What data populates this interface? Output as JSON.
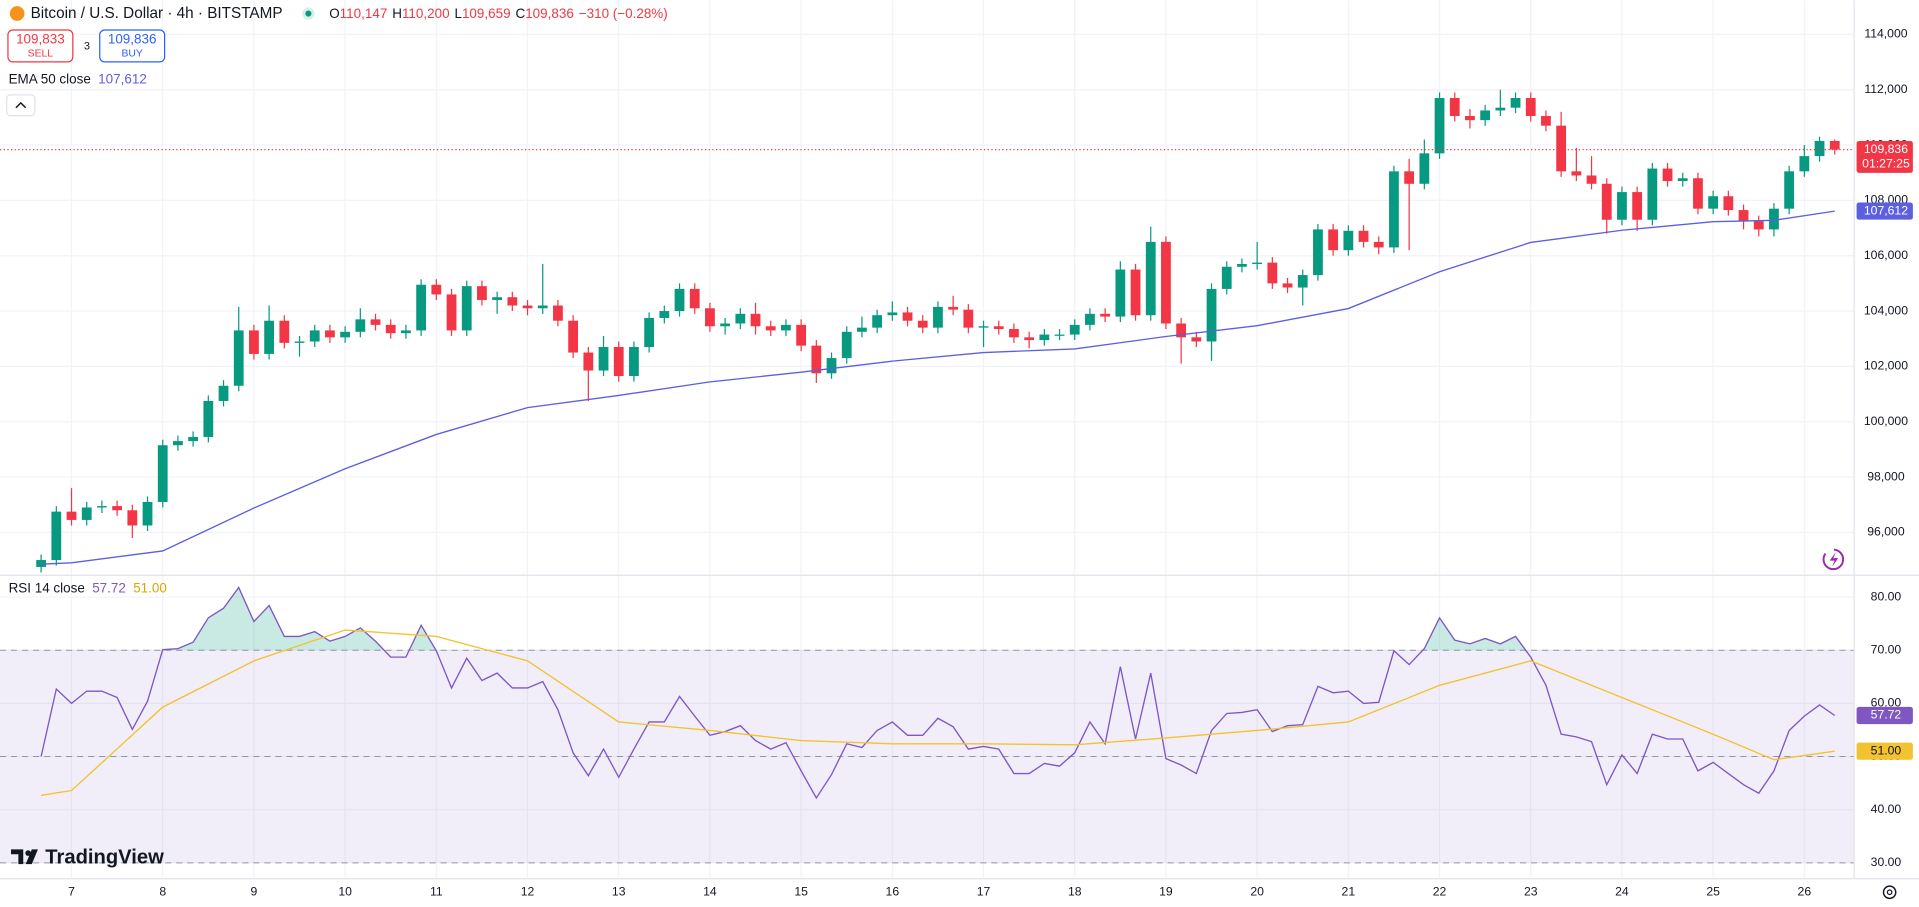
{
  "header": {
    "symbol": "Bitcoin / U.S. Dollar · 4h · BITSTAMP",
    "ohlc": [
      {
        "key": "O",
        "value": "110,147"
      },
      {
        "key": "H",
        "value": "110,200"
      },
      {
        "key": "L",
        "value": "109,659"
      },
      {
        "key": "C",
        "value": "109,836"
      }
    ],
    "change": "−310 (−0.28%)",
    "sell": {
      "price": "109,833",
      "label": "SELL"
    },
    "spread": "3",
    "buy": {
      "price": "109,836",
      "label": "BUY"
    },
    "brand": "TradingView"
  },
  "chart_data": [
    {
      "type": "candlestick",
      "up_color": "#089981",
      "down_color": "#f23645",
      "grid": true,
      "categories": [
        null,
        null,
        "7",
        null,
        null,
        null,
        null,
        null,
        "8",
        null,
        null,
        null,
        null,
        null,
        "9",
        null,
        null,
        null,
        null,
        null,
        "10",
        null,
        null,
        null,
        null,
        null,
        "11",
        null,
        null,
        null,
        null,
        null,
        "12",
        null,
        null,
        null,
        null,
        null,
        "13",
        null,
        null,
        null,
        null,
        null,
        "14",
        null,
        null,
        null,
        null,
        null,
        "15",
        null,
        null,
        null,
        null,
        null,
        "16",
        null,
        null,
        null,
        null,
        null,
        "17",
        null,
        null,
        null,
        null,
        null,
        "18",
        null,
        null,
        null,
        null,
        null,
        "19",
        null,
        null,
        null,
        null,
        null,
        "20",
        null,
        null,
        null,
        null,
        null,
        "21",
        null,
        null,
        null,
        null,
        null,
        "22",
        null,
        null,
        null,
        null,
        null,
        "23",
        null,
        null,
        null,
        null,
        null,
        "24",
        null,
        null,
        null,
        null,
        null,
        "25",
        null,
        null,
        null,
        null,
        null,
        "26",
        null,
        null
      ],
      "open": [
        94750,
        95000,
        96750,
        96450,
        96900,
        96950,
        96800,
        96250,
        97100,
        99150,
        99300,
        99450,
        100750,
        101300,
        103300,
        102450,
        103650,
        102850,
        102900,
        103300,
        103050,
        103250,
        103700,
        103500,
        103200,
        103300,
        104950,
        104600,
        103300,
        104900,
        104400,
        104500,
        104200,
        104100,
        104200,
        103650,
        102500,
        101850,
        102700,
        101650,
        102700,
        103750,
        104000,
        104800,
        104100,
        103450,
        103550,
        103900,
        103450,
        103300,
        103500,
        102750,
        101750,
        102300,
        103250,
        103400,
        103850,
        103950,
        103650,
        103400,
        104150,
        104050,
        103400,
        103450,
        103350,
        103050,
        102950,
        103150,
        103150,
        103500,
        103900,
        103800,
        105500,
        103850,
        106500,
        103550,
        103050,
        102900,
        104800,
        105600,
        105700,
        105750,
        105000,
        104850,
        105300,
        106950,
        106200,
        106900,
        106500,
        106300,
        109050,
        108600,
        109700,
        111700,
        111050,
        110900,
        111250,
        111350,
        111700,
        111050,
        110700,
        109050,
        108900,
        108600,
        107300,
        108300,
        107300,
        109150,
        108700,
        108800,
        107700,
        108150,
        107650,
        107250,
        106950,
        107700,
        109050,
        109600,
        110147
      ],
      "high": [
        95200,
        96950,
        97600,
        97100,
        97150,
        97150,
        97000,
        97300,
        99350,
        99500,
        99650,
        100950,
        101500,
        104150,
        103500,
        104200,
        103850,
        103100,
        103500,
        103500,
        103450,
        104100,
        103900,
        103700,
        103500,
        105150,
        105150,
        104800,
        105100,
        105100,
        104700,
        104700,
        104400,
        105700,
        104400,
        103850,
        102700,
        103100,
        102900,
        102900,
        103950,
        104200,
        105000,
        105000,
        104300,
        103750,
        104100,
        104300,
        103650,
        103700,
        103700,
        102950,
        102500,
        103450,
        103800,
        104050,
        104350,
        104150,
        103850,
        104350,
        104550,
        104250,
        103650,
        103650,
        103550,
        103250,
        103350,
        103350,
        103700,
        104100,
        104100,
        105800,
        105700,
        107050,
        106700,
        103750,
        103250,
        105000,
        105800,
        105900,
        106500,
        105950,
        105200,
        105500,
        107150,
        107150,
        107100,
        107100,
        106700,
        109250,
        109500,
        110200,
        111900,
        111900,
        111300,
        111450,
        112000,
        111900,
        111900,
        111250,
        111200,
        109900,
        109600,
        108800,
        108500,
        108500,
        109350,
        109350,
        109000,
        109000,
        108350,
        108350,
        107850,
        107450,
        107900,
        109250,
        110000,
        110300,
        110200
      ],
      "low": [
        94550,
        94800,
        96250,
        96250,
        96700,
        96600,
        95800,
        96050,
        96900,
        98950,
        99100,
        99250,
        100550,
        101100,
        102250,
        102250,
        102650,
        102350,
        102700,
        102850,
        102850,
        103050,
        103300,
        103000,
        103000,
        103100,
        104400,
        103100,
        103100,
        104200,
        103900,
        104000,
        103850,
        103900,
        103450,
        102300,
        100750,
        101650,
        101450,
        101450,
        102500,
        103550,
        103800,
        103900,
        103250,
        103150,
        103350,
        103150,
        103100,
        103100,
        102550,
        101400,
        101550,
        102100,
        103050,
        103200,
        103650,
        103450,
        103200,
        103200,
        103850,
        103200,
        102700,
        103150,
        102850,
        102650,
        102750,
        102950,
        102950,
        103300,
        103600,
        103600,
        103650,
        103650,
        103350,
        102100,
        102700,
        102200,
        104600,
        105400,
        105500,
        104800,
        104650,
        104200,
        105100,
        106000,
        106000,
        106300,
        106050,
        106100,
        106200,
        108400,
        109500,
        110850,
        110600,
        110700,
        111050,
        111150,
        110850,
        110500,
        108850,
        108700,
        108400,
        106800,
        107100,
        106900,
        107100,
        108500,
        108500,
        107500,
        107500,
        107450,
        106950,
        106700,
        106700,
        107500,
        108850,
        109400,
        109659
      ],
      "close": [
        95000,
        96750,
        96450,
        96900,
        96950,
        96800,
        96250,
        97100,
        99150,
        99300,
        99450,
        100750,
        101300,
        103300,
        102450,
        103650,
        102850,
        102900,
        103300,
        103050,
        103250,
        103700,
        103500,
        103200,
        103300,
        104950,
        104600,
        103300,
        104900,
        104400,
        104500,
        104200,
        104100,
        104200,
        103650,
        102500,
        101850,
        102700,
        101650,
        102700,
        103750,
        104000,
        104800,
        104100,
        103450,
        103550,
        103900,
        103450,
        103300,
        103500,
        102750,
        101750,
        102300,
        103250,
        103400,
        103850,
        103950,
        103650,
        103400,
        104150,
        104050,
        103400,
        103450,
        103350,
        103050,
        102950,
        103150,
        103150,
        103500,
        103900,
        103800,
        105500,
        103850,
        106500,
        103550,
        103050,
        102900,
        104800,
        105600,
        105700,
        105750,
        105000,
        104850,
        105300,
        106950,
        106200,
        106900,
        106500,
        106300,
        109050,
        108600,
        109700,
        111700,
        111050,
        110900,
        111250,
        111350,
        111700,
        111050,
        110700,
        109050,
        108900,
        108600,
        107300,
        108300,
        107300,
        109150,
        108700,
        108800,
        107700,
        108150,
        107650,
        107250,
        106950,
        107700,
        109050,
        109600,
        110147,
        109836
      ],
      "ylim": [
        94450,
        115240
      ],
      "yticks": [
        {
          "value": 96000,
          "label": "96,000"
        },
        {
          "value": 98000,
          "label": "98,000"
        },
        {
          "value": 100000,
          "label": "100,000"
        },
        {
          "value": 102000,
          "label": "102,000"
        },
        {
          "value": 104000,
          "label": "104,000"
        },
        {
          "value": 106000,
          "label": "106,000"
        },
        {
          "value": 108000,
          "label": "108,000"
        },
        {
          "value": 110000,
          "label": "110,000"
        },
        {
          "value": 112000,
          "label": "112,000"
        },
        {
          "value": 114000,
          "label": "114,000"
        }
      ],
      "last_price": {
        "value": 109836,
        "label": "109,836"
      },
      "countdown": "01:27:25",
      "series": [
        {
          "name": "EMA 50 close",
          "color": "#5b5fe0",
          "x": [
            0,
            2,
            8,
            14,
            20,
            26,
            32,
            38,
            44,
            50,
            56,
            62,
            68,
            74,
            80,
            86,
            92,
            98,
            104,
            110,
            114,
            118
          ],
          "values": [
            94850,
            94900,
            95330,
            96880,
            98300,
            99540,
            100510,
            100950,
            101440,
            101790,
            102190,
            102500,
            102630,
            103080,
            103470,
            104090,
            105420,
            106480,
            106920,
            107230,
            107280,
            107612
          ],
          "last_label": {
            "value": 107612,
            "label": "107,612"
          },
          "label_color": "#ffffff"
        }
      ]
    },
    {
      "type": "line",
      "title": "RSI 14 close",
      "grid": true,
      "ylim": [
        27,
        84.1
      ],
      "yticks": [
        {
          "value": 30,
          "label": "30.00"
        },
        {
          "value": 40,
          "label": "40.00"
        },
        {
          "value": 50,
          "label": "50.00"
        },
        {
          "value": 60,
          "label": "60.00"
        },
        {
          "value": 70,
          "label": "70.00"
        },
        {
          "value": 80,
          "label": "80.00"
        }
      ],
      "levels": [
        30,
        50,
        70
      ],
      "band": [
        30,
        70
      ],
      "band_color": "rgba(126,87,194,0.1)",
      "overbought_color": "rgba(8,153,129,0.22)",
      "series": [
        {
          "color": "#7e57c2",
          "values": [
            50.0,
            62.7,
            60.0,
            62.3,
            62.3,
            61.1,
            55.1,
            60.4,
            70.1,
            70.3,
            71.5,
            76.1,
            77.9,
            81.8,
            75.4,
            78.4,
            72.6,
            72.6,
            73.5,
            71.7,
            72.6,
            74.2,
            71.7,
            68.7,
            68.7,
            74.7,
            69.9,
            62.9,
            68.5,
            64.3,
            65.7,
            62.9,
            62.9,
            64.1,
            58.8,
            50.7,
            46.4,
            51.4,
            46.1,
            51.4,
            56.5,
            56.5,
            61.3,
            57.6,
            54.0,
            54.7,
            55.8,
            53.0,
            51.4,
            52.6,
            47.3,
            42.2,
            46.6,
            52.4,
            51.7,
            54.9,
            56.5,
            54.0,
            54.0,
            57.2,
            55.6,
            51.4,
            51.9,
            51.4,
            46.8,
            46.8,
            48.7,
            48.2,
            50.7,
            56.5,
            52.4,
            66.9,
            53.3,
            65.7,
            49.6,
            48.4,
            46.8,
            54.9,
            58.1,
            58.3,
            58.8,
            54.7,
            55.8,
            56.0,
            63.2,
            62.0,
            62.3,
            60.0,
            60.2,
            69.9,
            67.3,
            70.3,
            76.1,
            71.9,
            71.2,
            72.2,
            71.2,
            72.6,
            68.7,
            63.4,
            54.2,
            53.7,
            52.8,
            44.7,
            50.3,
            46.8,
            54.2,
            53.3,
            53.3,
            47.3,
            48.9,
            46.8,
            44.7,
            43.1,
            47.3,
            54.9,
            57.6,
            59.7,
            57.72
          ],
          "last_label": {
            "value": 57.72,
            "label": "57.72"
          },
          "label_color": "#ffffff"
        },
        {
          "color": "#f2c230",
          "x": [
            0,
            2,
            8,
            14,
            20,
            26,
            32,
            38,
            44,
            50,
            56,
            62,
            68,
            74,
            80,
            86,
            92,
            98,
            104,
            110,
            114,
            118
          ],
          "values": [
            42.7,
            43.6,
            59.3,
            68.0,
            73.8,
            72.6,
            68.0,
            56.5,
            54.9,
            53.0,
            52.4,
            52.4,
            52.2,
            53.5,
            54.9,
            56.5,
            63.4,
            68.0,
            61.1,
            54.2,
            49.4,
            51.0
          ],
          "last_label": {
            "value": 51.0,
            "label": "51.00"
          },
          "label_color": "#131722"
        }
      ]
    }
  ]
}
